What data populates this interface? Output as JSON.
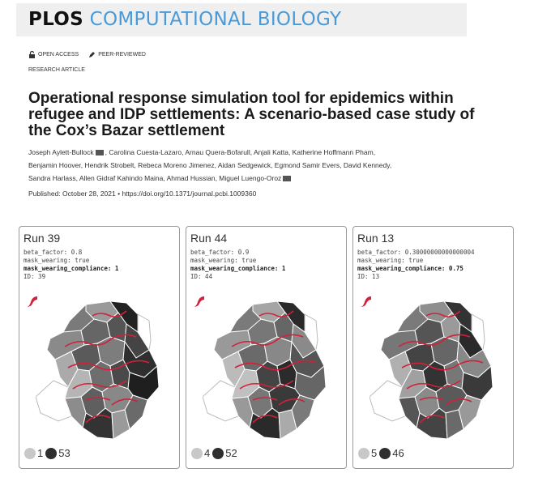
{
  "journal": {
    "name_part1": "PLOS",
    "name_part2": "COMPUTATIONAL BIOLOGY"
  },
  "badges": {
    "open_access": "OPEN ACCESS",
    "peer_reviewed": "PEER-REVIEWED"
  },
  "article_type": "RESEARCH ARTICLE",
  "title": "Operational response simulation tool for epidemics within refugee and IDP settlements: A scenario-based case study of the Cox’s Bazar settlement",
  "authors": {
    "line1": "Joseph Aylett-Bullock",
    "line1_rest": ", Carolina Cuesta-Lazaro, Arnau Quera-Bofarull, Anjali Katta, Katherine Hoffmann Pham,",
    "line2": "Benjamin Hoover, Hendrik Strobelt, Rebeca Moreno Jimenez, Aidan Sedgewick, Egmond Samir Evers, David Kennedy,",
    "line3": "Sandra Harlass, Allen Gidraf Kahindo Maina, Ahmad Hussian, Miguel Luengo-Oroz"
  },
  "published": "Published: October 28, 2021  •  https://doi.org/10.1371/journal.pcbi.1009360",
  "colors": {
    "accent": "#4a9ad8",
    "route": "#d2203b"
  },
  "runs": [
    {
      "title": "Run 39",
      "beta": "beta_factor: 0.8",
      "mask": "mask_wearing: true",
      "compliance": "mask_wearing_compliance: 1",
      "id": "ID: 39",
      "light_count": "1",
      "dark_count": "53"
    },
    {
      "title": "Run 44",
      "beta": "beta_factor: 0.9",
      "mask": "mask_wearing: true",
      "compliance": "mask_wearing_compliance: 1",
      "id": "ID: 44",
      "light_count": "4",
      "dark_count": "52"
    },
    {
      "title": "Run 13",
      "beta": "beta_factor: 0.30000000000000004",
      "mask": "mask_wearing: true",
      "compliance": "mask_wearing_compliance: 0.75",
      "id": "ID: 13",
      "light_count": "5",
      "dark_count": "46"
    }
  ]
}
